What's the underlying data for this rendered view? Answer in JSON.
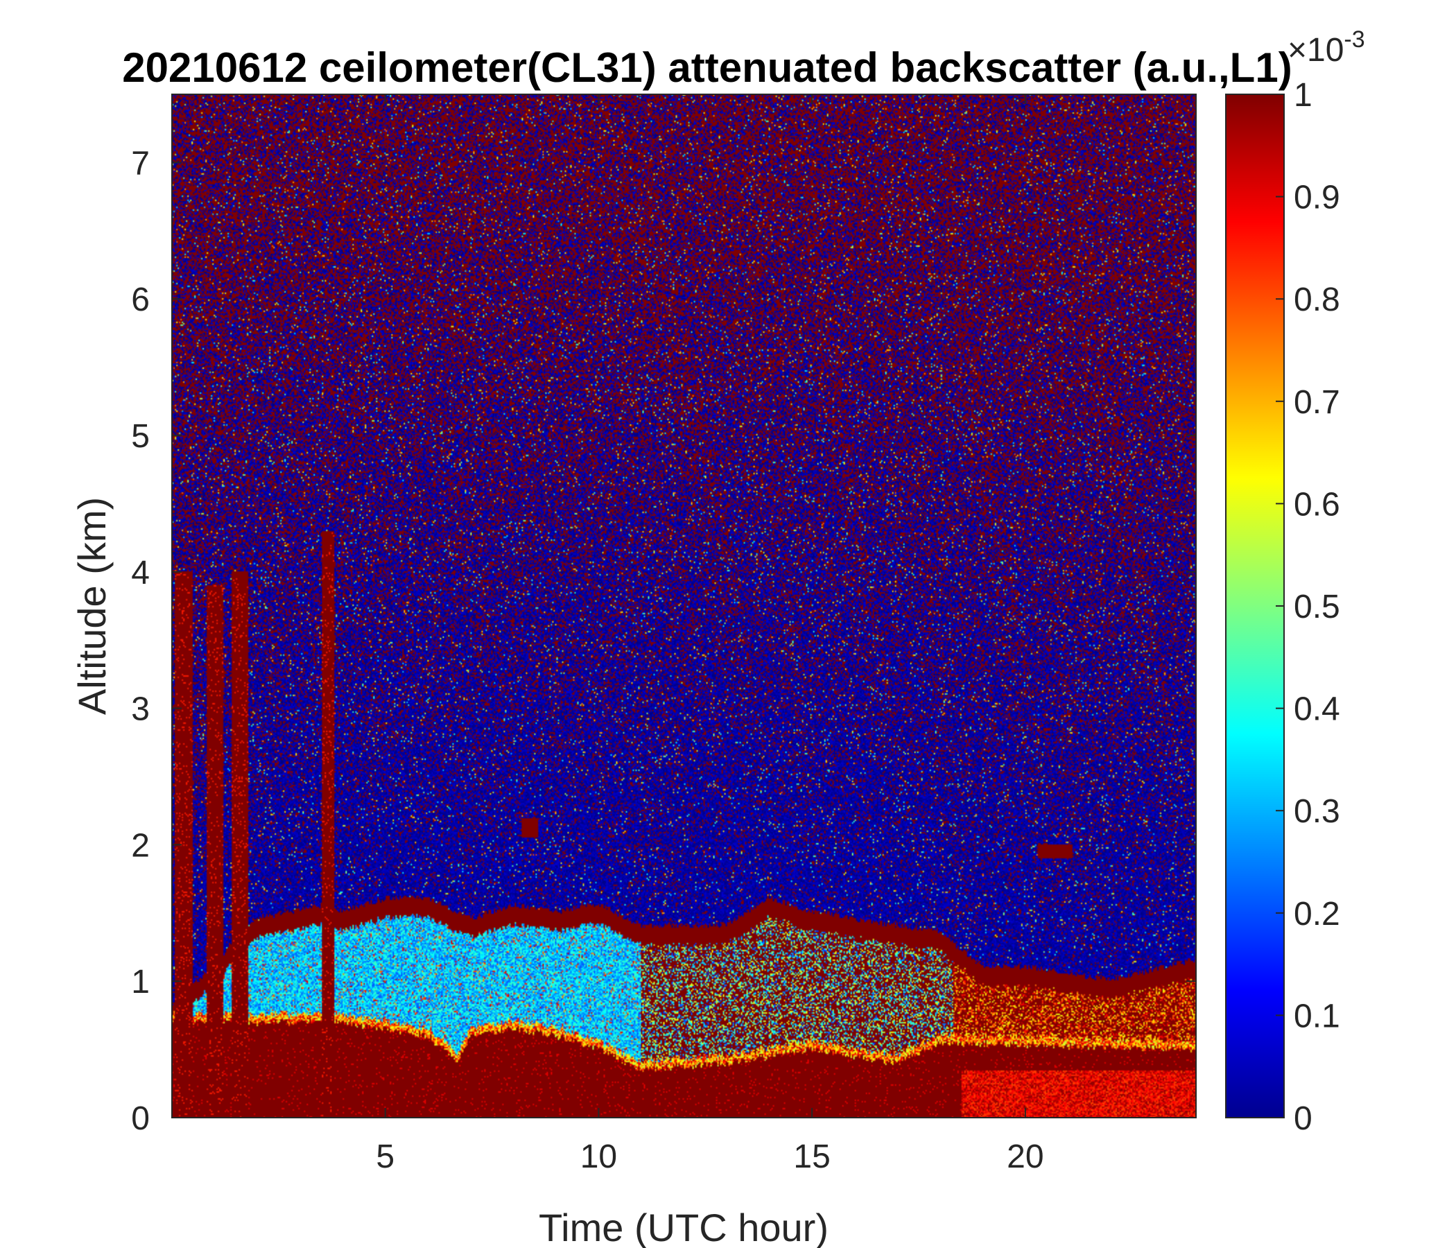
{
  "chart_data": {
    "type": "heatmap",
    "title": "20210612 ceilometer(CL31) attenuated backscatter (a.u.,L1)",
    "xlabel": "Time (UTC hour)",
    "ylabel": "Altitude (km)",
    "xlim": [
      0,
      24
    ],
    "ylim": [
      0,
      7.5
    ],
    "x_ticks": [
      5,
      10,
      15,
      20
    ],
    "y_ticks": [
      0,
      1,
      2,
      3,
      4,
      5,
      6,
      7
    ],
    "colorbar": {
      "colormap": "jet",
      "clim": [
        0,
        1
      ],
      "exponent_label": "×10",
      "exponent_power": "-3",
      "ticks": [
        "0",
        "0.1",
        "0.2",
        "0.3",
        "0.4",
        "0.5",
        "0.6",
        "0.7",
        "0.8",
        "0.9",
        "1"
      ],
      "saturated_color": "#800000",
      "low_color": "#00008f"
    },
    "features": {
      "boundary_layer_top_km": [
        {
          "hour": 0,
          "km": 0.75
        },
        {
          "hour": 2,
          "km": 1.4
        },
        {
          "hour": 3.5,
          "km": 1.5
        },
        {
          "hour": 4,
          "km": 1.45
        },
        {
          "hour": 5,
          "km": 1.55
        },
        {
          "hour": 6,
          "km": 1.55
        },
        {
          "hour": 7,
          "km": 1.4
        },
        {
          "hour": 8,
          "km": 1.5
        },
        {
          "hour": 9,
          "km": 1.45
        },
        {
          "hour": 10,
          "km": 1.5
        },
        {
          "hour": 11,
          "km": 1.35
        },
        {
          "hour": 13,
          "km": 1.35
        },
        {
          "hour": 14,
          "km": 1.55
        },
        {
          "hour": 15,
          "km": 1.45
        },
        {
          "hour": 16,
          "km": 1.4
        },
        {
          "hour": 17,
          "km": 1.35
        },
        {
          "hour": 18,
          "km": 1.3
        },
        {
          "hour": 19,
          "km": 1.05
        },
        {
          "hour": 20,
          "km": 1.05
        },
        {
          "hour": 22,
          "km": 0.95
        },
        {
          "hour": 24,
          "km": 1.1
        }
      ],
      "dense_aerosol_top_km": [
        {
          "hour": 0,
          "km": 0.7
        },
        {
          "hour": 4,
          "km": 0.7
        },
        {
          "hour": 5,
          "km": 0.65
        },
        {
          "hour": 6,
          "km": 0.6
        },
        {
          "hour": 6.7,
          "km": 0.42
        },
        {
          "hour": 7,
          "km": 0.6
        },
        {
          "hour": 8,
          "km": 0.65
        },
        {
          "hour": 9,
          "km": 0.6
        },
        {
          "hour": 10,
          "km": 0.5
        },
        {
          "hour": 11,
          "km": 0.35
        },
        {
          "hour": 13,
          "km": 0.4
        },
        {
          "hour": 15,
          "km": 0.5
        },
        {
          "hour": 17,
          "km": 0.4
        },
        {
          "hour": 18,
          "km": 0.55
        },
        {
          "hour": 24,
          "km": 0.5
        }
      ],
      "elevated_layers": [
        {
          "hour_start": 8.2,
          "hour_end": 8.6,
          "km_bottom": 2.05,
          "km_top": 2.2
        },
        {
          "hour_start": 20.3,
          "hour_end": 21.1,
          "km_bottom": 1.9,
          "km_top": 2.0
        }
      ],
      "precipitation_columns": [
        {
          "hour_start": 0.05,
          "hour_end": 0.5,
          "km_top": 4.0
        },
        {
          "hour_start": 0.8,
          "hour_end": 1.2,
          "km_top": 3.9
        },
        {
          "hour_start": 1.4,
          "hour_end": 1.8,
          "km_top": 4.0
        },
        {
          "hour_start": 3.5,
          "hour_end": 3.8,
          "km_top": 4.3
        }
      ]
    }
  }
}
